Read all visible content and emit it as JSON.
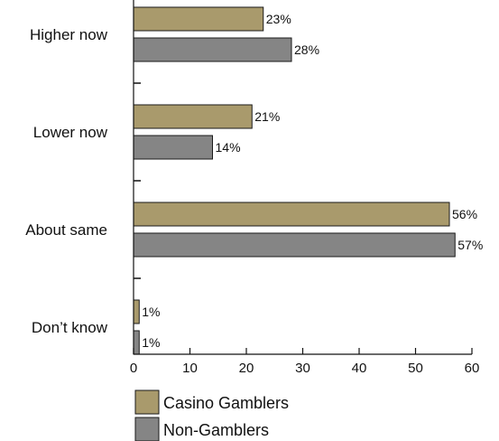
{
  "chart_data": {
    "type": "bar",
    "orientation": "horizontal",
    "categories": [
      "Higher now",
      "Lower now",
      "About same",
      "Don’t know"
    ],
    "series": [
      {
        "name": "Casino Gamblers",
        "values": [
          23,
          21,
          56,
          1
        ],
        "labels": [
          "23%",
          "21%",
          "56%",
          "1%"
        ],
        "color": "#a99a6c"
      },
      {
        "name": "Non-Gamblers",
        "values": [
          28,
          14,
          57,
          1
        ],
        "labels": [
          "28%",
          "14%",
          "57%",
          "1%"
        ],
        "color": "#858585"
      }
    ],
    "xlim": [
      0,
      60
    ],
    "xticks": [
      0,
      10,
      20,
      30,
      40,
      50,
      60
    ],
    "xtick_labels": [
      "0",
      "10",
      "20",
      "30",
      "40",
      "50",
      "60"
    ],
    "title": "",
    "xlabel": "",
    "ylabel": "",
    "grid": false,
    "legend_position": "bottom-left"
  }
}
